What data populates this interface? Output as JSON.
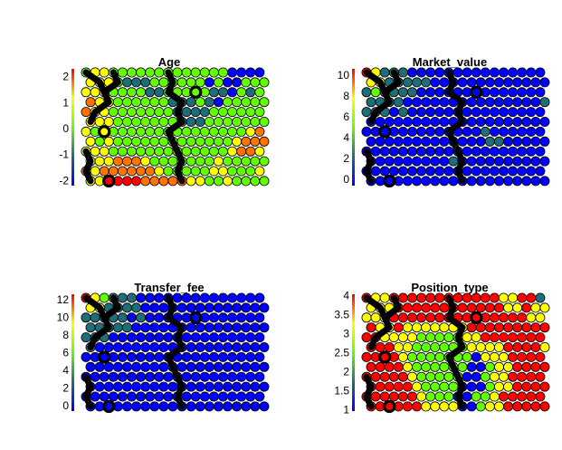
{
  "chart_data": [
    {
      "type": "heatmap",
      "title": "Age",
      "yticks": [
        "2",
        "1",
        "0",
        "-1",
        "-2"
      ],
      "ylim": [
        -2.2,
        2.3
      ],
      "grid": false,
      "colormap": [
        "#0000ff",
        "#1e6e78",
        "#62ff00",
        "#ffff00",
        "#ff0000"
      ],
      "rows": [
        "gYYgggggggggggggbbbb",
        "YYYgtttggggggbgbbggg",
        "YYYggggttgggggttbgtg",
        "OYYggggggtttgtbggggg",
        "OYYgggggggttttgggggg",
        "YYYgggggggtttggggggg",
        "YgYgggggggggggggggYO",
        "YgYgggggggggggggYOOO",
        "YYYgggggggggggggYOOY",
        "YYYOOOYgggggggYggggg",
        "OYOOOOOOYgggggYYgggY",
        "YYRRRROOOOOYYggYgggg"
      ],
      "boundary": [
        [
          [
            0,
            0
          ],
          [
            1,
            1
          ],
          [
            2,
            2
          ],
          [
            2,
            3
          ],
          [
            1,
            4
          ],
          [
            0,
            5
          ]
        ],
        [
          [
            2,
            2
          ],
          [
            3,
            1
          ],
          [
            3,
            0
          ]
        ],
        [
          [
            9,
            0
          ],
          [
            9,
            1
          ],
          [
            9,
            2
          ],
          [
            10,
            3
          ],
          [
            10,
            4
          ],
          [
            10,
            5
          ],
          [
            9,
            6
          ],
          [
            9,
            7
          ],
          [
            10,
            8
          ],
          [
            10,
            9
          ],
          [
            10,
            10
          ],
          [
            10,
            11
          ]
        ],
        [
          [
            0,
            8
          ],
          [
            0,
            9
          ],
          [
            0,
            10
          ],
          [
            0,
            11
          ]
        ]
      ],
      "rings": [
        [
          2,
          6
        ],
        [
          2,
          11
        ],
        [
          12,
          2
        ]
      ]
    },
    {
      "type": "heatmap",
      "title": "Market_value",
      "yticks": [
        "10",
        "8",
        "6",
        "4",
        "2",
        "0"
      ],
      "ylim": [
        -0.6,
        10.6
      ],
      "grid": false,
      "colormap": [
        "#0000ff",
        "#1e6e78",
        "#62ff00",
        "#ffff00",
        "#ff0000"
      ],
      "rows": [
        "RYtttbbbbbbbbbbbbbbb",
        "YYtttttbbbbbbbbbbbbb",
        "tgttttbbbbbbbbbbbbbb",
        "ttttbbbbbbbbbbbbbbbt",
        "tttbtbbbbbbbbbbbbbbb",
        "bbbbbbbbbbbbbbbbbbbb",
        "bbbbbbbbbbbbbtbbbbbb",
        "bbbbbbbbbbbbbttbbbbb",
        "bbbbbbbbbbbbbbbbbbbb",
        "bbbbbbbbbtbbbbbbbbbb",
        "bbbbbbbbbbbbbbbbbbbb",
        "bbbbbbbbbbbbbbbbbbbb"
      ],
      "boundary": [
        [
          [
            0,
            0
          ],
          [
            1,
            1
          ],
          [
            2,
            2
          ],
          [
            2,
            3
          ],
          [
            1,
            4
          ],
          [
            0,
            5
          ]
        ],
        [
          [
            2,
            2
          ],
          [
            3,
            1
          ],
          [
            3,
            0
          ]
        ],
        [
          [
            9,
            0
          ],
          [
            9,
            1
          ],
          [
            9,
            2
          ],
          [
            10,
            3
          ],
          [
            10,
            4
          ],
          [
            10,
            5
          ],
          [
            9,
            6
          ],
          [
            9,
            7
          ],
          [
            10,
            8
          ],
          [
            10,
            9
          ],
          [
            10,
            10
          ],
          [
            10,
            11
          ]
        ],
        [
          [
            0,
            8
          ],
          [
            0,
            9
          ],
          [
            0,
            10
          ],
          [
            0,
            11
          ]
        ]
      ],
      "rings": [
        [
          2,
          6
        ],
        [
          2,
          11
        ],
        [
          12,
          2
        ]
      ]
    },
    {
      "type": "heatmap",
      "title": "Transfer_fee",
      "yticks": [
        "12",
        "10",
        "8",
        "6",
        "4",
        "2",
        "0"
      ],
      "ylim": [
        -0.6,
        12.6
      ],
      "grid": false,
      "colormap": [
        "#0000ff",
        "#1e6e78",
        "#62ff00",
        "#ffff00",
        "#ff0000"
      ],
      "rows": [
        "RYgtttbbbbbbbbbbbbbb",
        "YYttttbbbbbbbbbbbbbb",
        "tttttbtbbbbbbbbbbbbb",
        "tttttbbbbbbbbbbbbbbb",
        "tttbbbbbbbbbbbbbbbbb",
        "tbbbbbbbbbbbbbbbbbbb",
        "bbbbbbbbbbbbbbbbbbbb",
        "bbbbbbbbbbbbbbbbbbbb",
        "bbbbbbbbbbbbbbbbbbbb",
        "bbbbbbbbbbbbbbbbbbbb",
        "bbbbbbbbbbbbbbbbbbbb",
        "bbbbbbbbbbbbbbbbbbbb"
      ],
      "boundary": [
        [
          [
            0,
            0
          ],
          [
            1,
            1
          ],
          [
            2,
            2
          ],
          [
            2,
            3
          ],
          [
            1,
            4
          ],
          [
            0,
            5
          ]
        ],
        [
          [
            2,
            2
          ],
          [
            3,
            1
          ],
          [
            3,
            0
          ]
        ],
        [
          [
            9,
            0
          ],
          [
            9,
            1
          ],
          [
            9,
            2
          ],
          [
            10,
            3
          ],
          [
            10,
            4
          ],
          [
            10,
            5
          ],
          [
            9,
            6
          ],
          [
            9,
            7
          ],
          [
            10,
            8
          ],
          [
            10,
            9
          ],
          [
            10,
            10
          ],
          [
            10,
            11
          ]
        ],
        [
          [
            0,
            8
          ],
          [
            0,
            9
          ],
          [
            0,
            10
          ],
          [
            0,
            11
          ]
        ]
      ],
      "rings": [
        [
          2,
          6
        ],
        [
          2,
          11
        ],
        [
          12,
          2
        ]
      ]
    },
    {
      "type": "heatmap",
      "title": "Position_type",
      "yticks": [
        "4",
        "3.5",
        "3",
        "2.5",
        "2",
        "1.5",
        "1"
      ],
      "ylim": [
        0.97,
        4.03
      ],
      "grid": false,
      "colormap": [
        "#0000ff",
        "#1e6e78",
        "#62ff00",
        "#ffff00",
        "#ff0000"
      ],
      "rows": [
        "RYYRRRRRRRRRRRRYYRRt",
        "YYYRRRRRRRRRRRRYYRYY",
        "YYYRRRRRRRRRRRRRRRYY",
        "RYYRYYYYYYYRRRRRRRRR",
        "RRYYYYgggggYYRRRRRRR",
        "RRRYYggggggYYYYRRRRY",
        "RRRRYgggggggbYYYRRRR",
        "RRRRYggggggbbgYYRRRR",
        "RRRRRYgggggbbgYYRRRR",
        "RRRRRYggggbbbgYYRRRR",
        "RRRRRRYgggbbggYRRRRR",
        "RRRRRRYYYYbbgYYRRRRR"
      ],
      "boundary": [
        [
          [
            0,
            0
          ],
          [
            1,
            1
          ],
          [
            2,
            2
          ],
          [
            2,
            3
          ],
          [
            1,
            4
          ],
          [
            0,
            5
          ]
        ],
        [
          [
            2,
            2
          ],
          [
            3,
            1
          ],
          [
            3,
            0
          ]
        ],
        [
          [
            9,
            0
          ],
          [
            9,
            1
          ],
          [
            9,
            2
          ],
          [
            10,
            3
          ],
          [
            10,
            4
          ],
          [
            10,
            5
          ],
          [
            9,
            6
          ],
          [
            9,
            7
          ],
          [
            10,
            8
          ],
          [
            10,
            9
          ],
          [
            10,
            10
          ],
          [
            10,
            11
          ]
        ],
        [
          [
            0,
            8
          ],
          [
            0,
            9
          ],
          [
            0,
            10
          ],
          [
            0,
            11
          ]
        ]
      ],
      "rings": [
        [
          2,
          6
        ],
        [
          2,
          11
        ],
        [
          12,
          2
        ]
      ]
    }
  ]
}
